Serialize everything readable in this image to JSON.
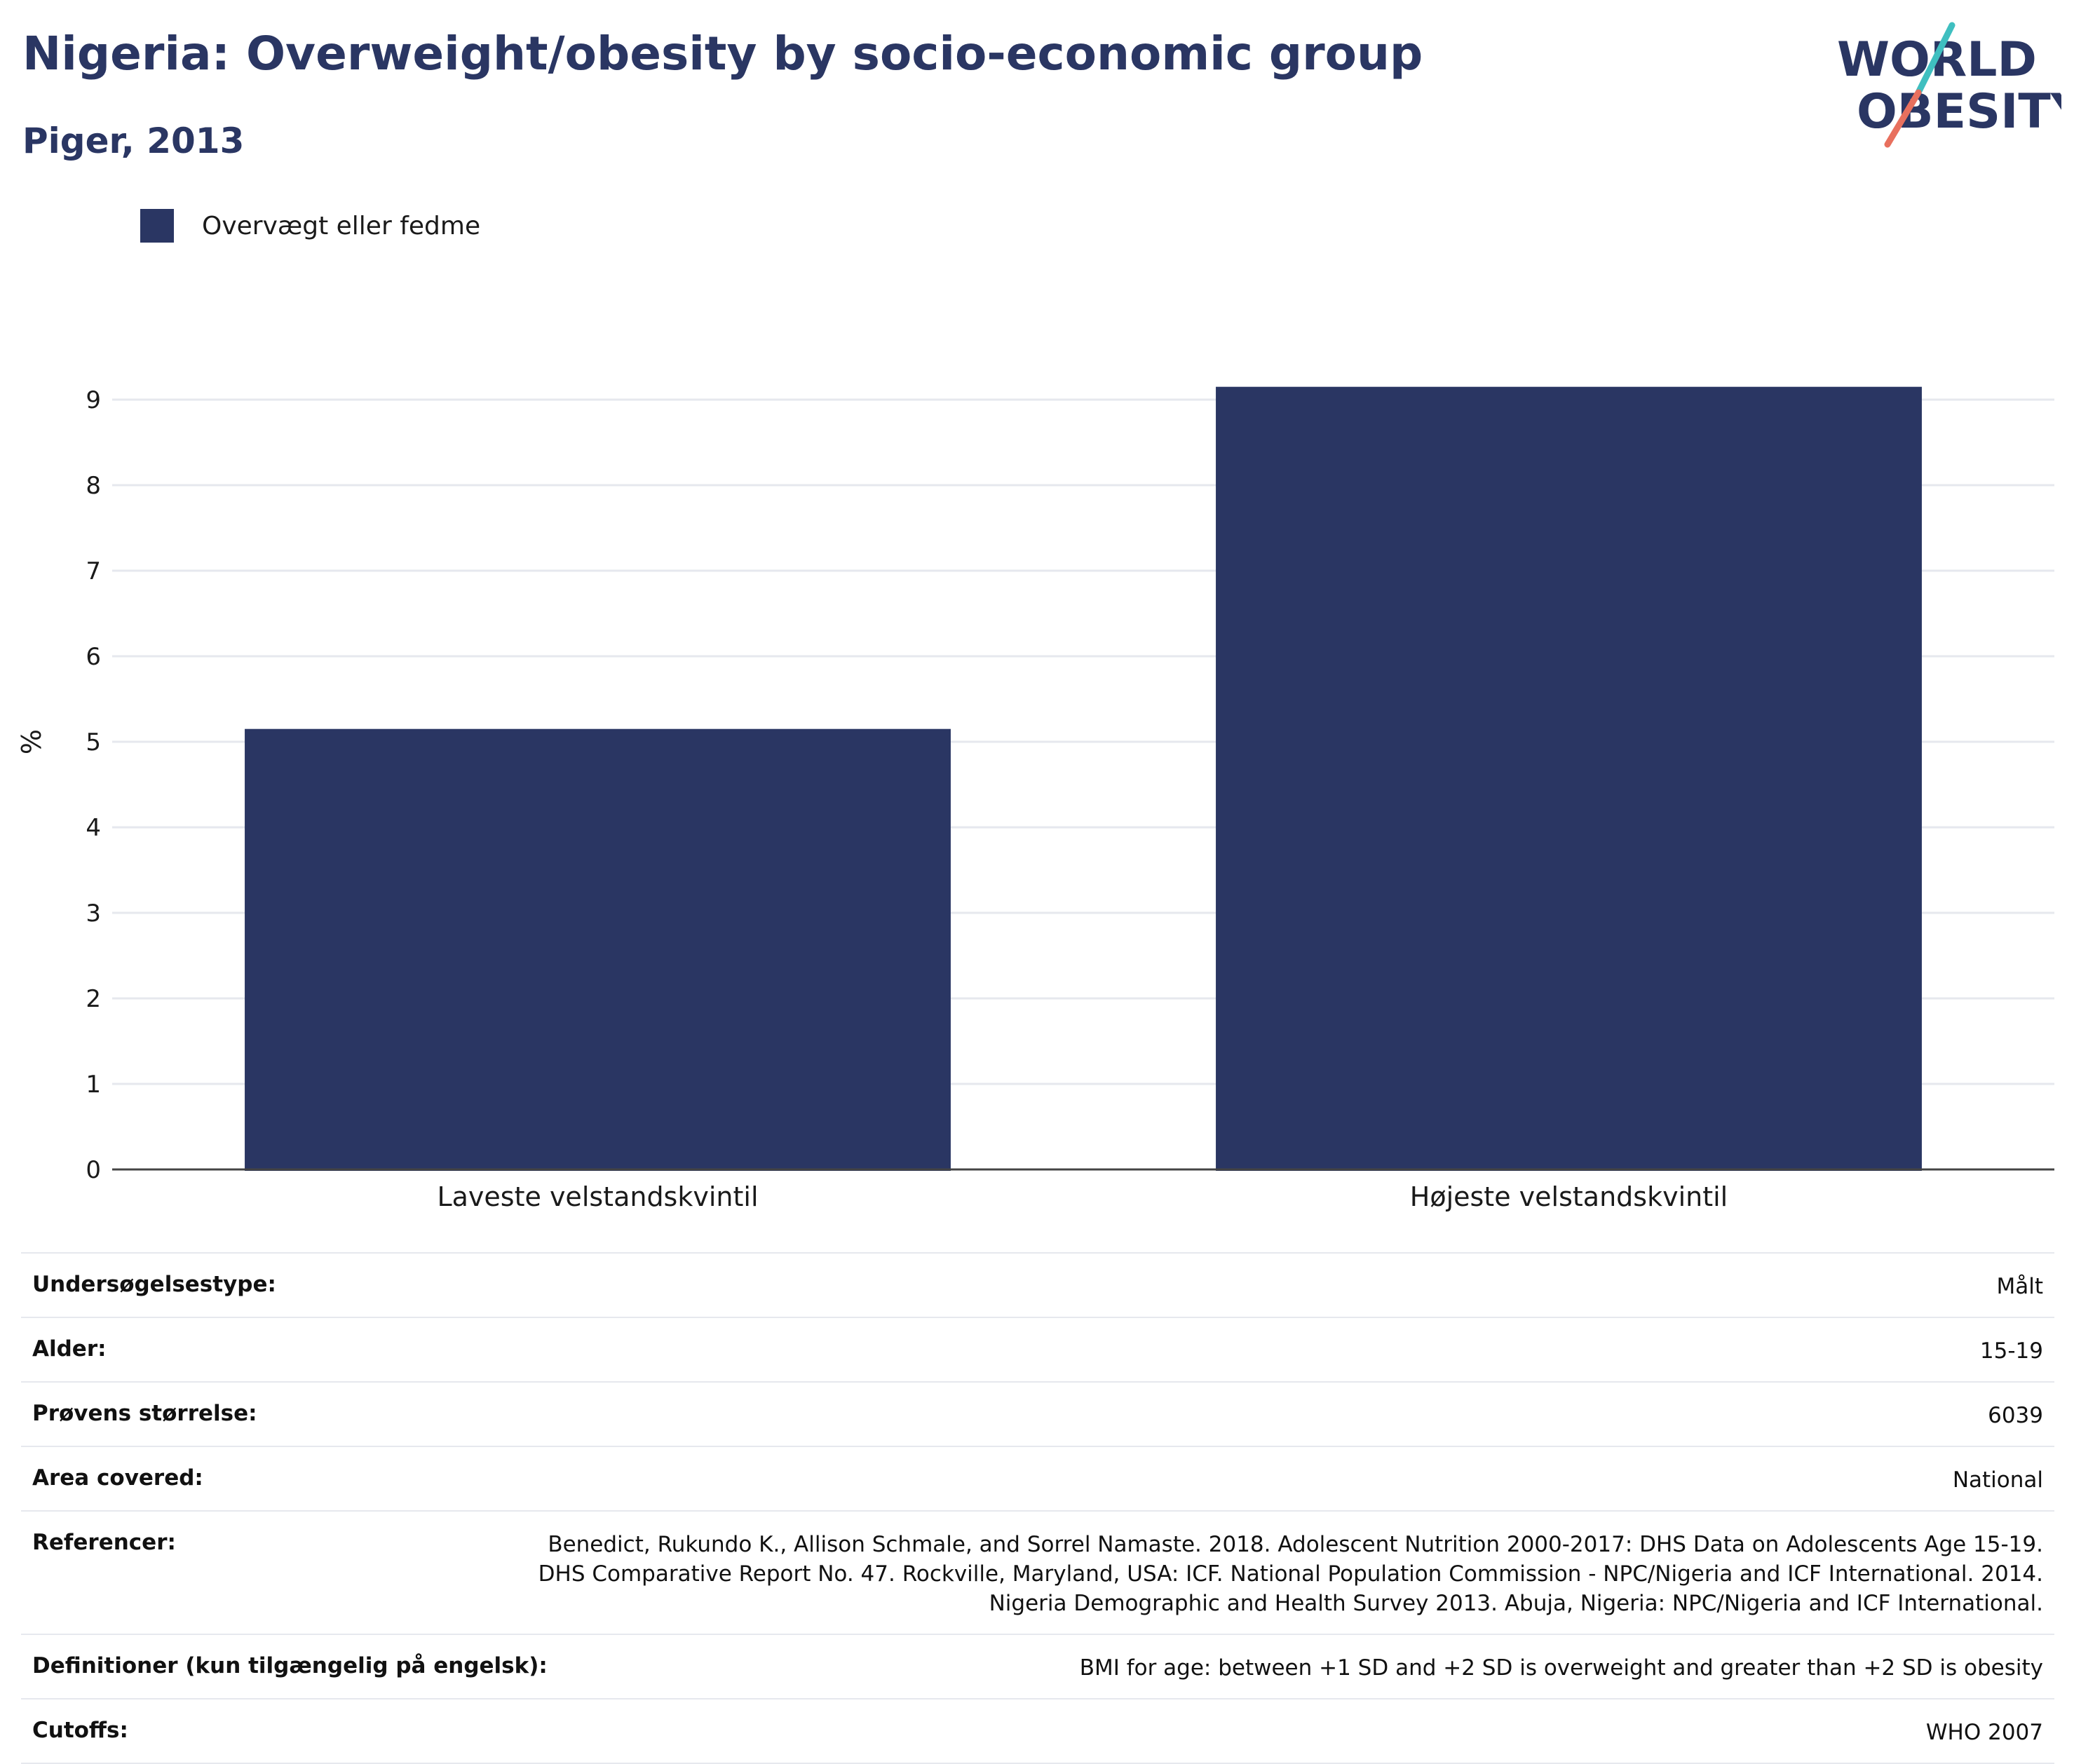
{
  "title": "Nigeria: Overweight/obesity by socio-economic group",
  "subtitle": "Piger, 2013",
  "logo": {
    "line1": "WORLD",
    "line2": "OBESITY",
    "accent_colors": [
      "#3fbfc0",
      "#e8705e"
    ]
  },
  "legend": {
    "label": "Overvægt eller fedme",
    "color": "#2a3663"
  },
  "chart_data": {
    "type": "bar",
    "categories": [
      "Laveste velstandskvintil",
      "Højeste velstandskvintil"
    ],
    "series": [
      {
        "name": "Overvægt eller fedme",
        "values": [
          5.15,
          9.15
        ],
        "color": "#2a3663"
      }
    ],
    "ylabel": "%",
    "xlabel": "",
    "ylim": [
      0,
      9.3
    ],
    "yticks": [
      0,
      1,
      2,
      3,
      4,
      5,
      6,
      7,
      8,
      9
    ],
    "grid": true,
    "legend_position": "top-left"
  },
  "info": [
    {
      "label": "Undersøgelsestype:",
      "value": "Målt"
    },
    {
      "label": "Alder:",
      "value": "15-19"
    },
    {
      "label": "Prøvens størrelse:",
      "value": "6039"
    },
    {
      "label": "Area covered:",
      "value": "National"
    },
    {
      "label": "Referencer:",
      "value": "Benedict, Rukundo K., Allison Schmale, and Sorrel Namaste. 2018. Adolescent Nutrition 2000-2017: DHS Data on Adolescents Age 15-19. DHS Comparative Report No. 47. Rockville, Maryland, USA: ICF. National Population Commission - NPC/Nigeria and ICF International. 2014. Nigeria Demographic and Health Survey 2013. Abuja, Nigeria: NPC/Nigeria and ICF International."
    },
    {
      "label": "Definitioner (kun tilgængelig på engelsk):",
      "value": "BMI for age: between +1 SD and +2 SD is overweight and greater than +2 SD is obesity"
    },
    {
      "label": "Cutoffs:",
      "value": "WHO 2007"
    }
  ]
}
